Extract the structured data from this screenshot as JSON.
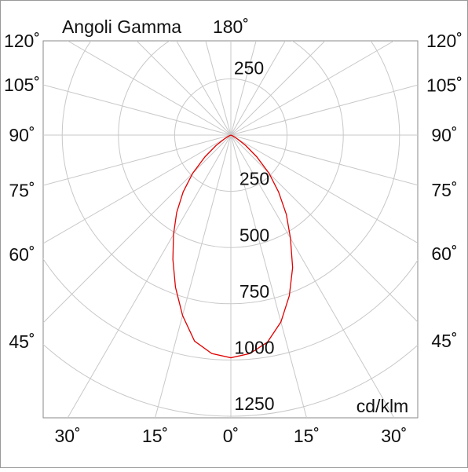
{
  "chart_data": {
    "type": "polar",
    "title": "Angoli Gamma",
    "unit": "cd/klm",
    "top_tick": {
      "value": 180,
      "label": "180˚"
    },
    "left_ticks": [
      {
        "value": 120,
        "label": "120˚"
      },
      {
        "value": 105,
        "label": "105˚"
      },
      {
        "value": 90,
        "label": "90˚"
      },
      {
        "value": 75,
        "label": "75˚"
      },
      {
        "value": 60,
        "label": "60˚"
      },
      {
        "value": 45,
        "label": "45˚"
      }
    ],
    "right_ticks": [
      {
        "value": 120,
        "label": "120˚"
      },
      {
        "value": 105,
        "label": "105˚"
      },
      {
        "value": 90,
        "label": "90˚"
      },
      {
        "value": 75,
        "label": "75˚"
      },
      {
        "value": 60,
        "label": "60˚"
      },
      {
        "value": 45,
        "label": "45˚"
      }
    ],
    "bottom_ticks": [
      {
        "value": -30,
        "label": "30˚"
      },
      {
        "value": -15,
        "label": "15˚"
      },
      {
        "value": 0,
        "label": "0˚"
      },
      {
        "value": 15,
        "label": "15˚"
      },
      {
        "value": 30,
        "label": "30˚"
      }
    ],
    "rlim": [
      0,
      1250
    ],
    "rticks": [
      250,
      500,
      750,
      1000,
      1250
    ],
    "angle_grid_step": 15,
    "grid": true,
    "x": [
      -70,
      -65,
      -60,
      -55,
      -50,
      -45,
      -40,
      -35,
      -30,
      -25,
      -20,
      -15,
      -10,
      -5,
      0,
      5,
      10,
      15,
      20,
      25,
      30,
      35,
      40,
      45,
      50,
      55,
      60,
      65,
      70
    ],
    "series": [
      {
        "color": "#e00000",
        "values": [
          0,
          10,
          30,
          80,
          150,
          240,
          330,
          420,
          510,
          610,
          720,
          830,
          930,
          975,
          990,
          975,
          935,
          860,
          760,
          650,
          530,
          430,
          330,
          240,
          150,
          80,
          30,
          10,
          0
        ]
      }
    ]
  }
}
